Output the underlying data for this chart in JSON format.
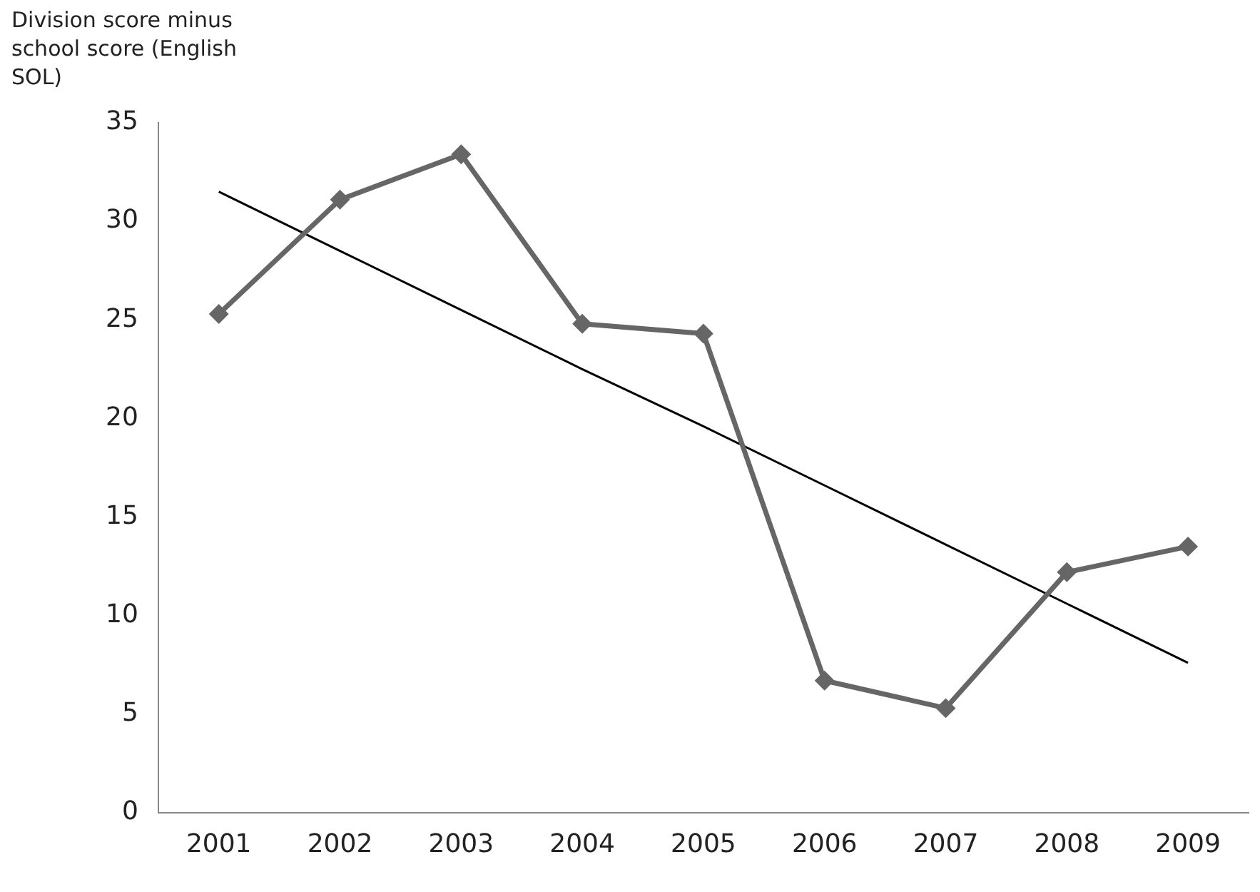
{
  "chart_data": {
    "type": "line",
    "ylabel": "Division score minus school score (English SOL)",
    "categories": [
      "2001",
      "2002",
      "2003",
      "2004",
      "2005",
      "2006",
      "2007",
      "2008",
      "2009"
    ],
    "series": [
      {
        "color": "#666666",
        "values": [
          25.3,
          31.1,
          33.4,
          24.8,
          24.3,
          6.7,
          5.3,
          12.2,
          13.5
        ],
        "marker": "diamond"
      },
      {
        "type": "line",
        "color": "#000000",
        "values": [
          31.5,
          28.5,
          25.5,
          22.5,
          19.6,
          16.6,
          13.6,
          10.6,
          7.6
        ],
        "marker": "none"
      }
    ],
    "ylim": [
      0,
      35
    ],
    "yticks": [
      0,
      5,
      10,
      15,
      20,
      25,
      30,
      35
    ],
    "grid": false,
    "legend": false
  }
}
